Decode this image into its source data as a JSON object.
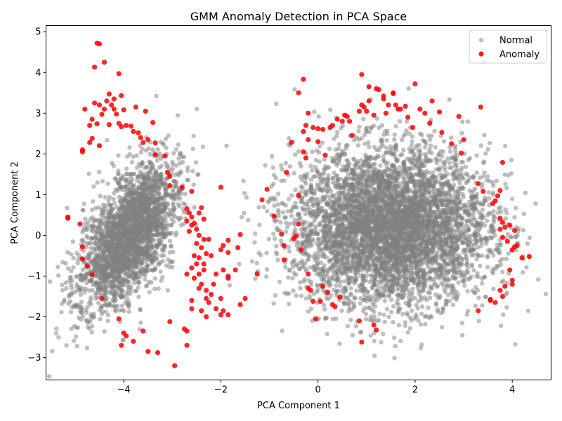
{
  "chart_data": {
    "type": "scatter",
    "title": "GMM Anomaly Detection in PCA Space",
    "xlabel": "PCA Component 1",
    "ylabel": "PCA Component 2",
    "xlim": [
      -5.6,
      4.8
    ],
    "ylim": [
      -3.55,
      5.15
    ],
    "xticks": [
      -4,
      -2,
      0,
      2,
      4
    ],
    "yticks": [
      -3,
      -2,
      -1,
      0,
      1,
      2,
      3,
      4,
      5
    ],
    "grid": false,
    "legend_position": "top-right",
    "series": [
      {
        "name": "Normal",
        "color": "#808080",
        "opacity": 0.5,
        "clusters": [
          {
            "center": [
              -3.9,
              0.0
            ],
            "spread": [
              0.38,
              0.95
            ],
            "rotation_deg": -22,
            "n": 2600
          },
          {
            "center": [
              1.5,
              0.2
            ],
            "spread": [
              1.0,
              0.95
            ],
            "rotation_deg": 0,
            "n": 5200
          }
        ]
      },
      {
        "name": "Anomaly",
        "color": "#ff0000",
        "opacity": 0.85,
        "points": [
          [
            -4.55,
            4.72
          ],
          [
            -4.5,
            4.7
          ],
          [
            -4.6,
            4.13
          ],
          [
            -4.4,
            4.25
          ],
          [
            -4.1,
            3.97
          ],
          [
            -4.3,
            3.47
          ],
          [
            -4.2,
            3.35
          ],
          [
            -4.05,
            3.43
          ],
          [
            -4.35,
            3.3
          ],
          [
            -4.25,
            3.2
          ],
          [
            -4.4,
            3.1
          ],
          [
            -4.5,
            3.2
          ],
          [
            -4.8,
            3.1
          ],
          [
            -4.6,
            3.25
          ],
          [
            -4.2,
            3.1
          ],
          [
            -4.15,
            2.98
          ],
          [
            -4.45,
            2.97
          ],
          [
            -4.65,
            2.85
          ],
          [
            -4.7,
            2.7
          ],
          [
            -4.55,
            2.74
          ],
          [
            -4.3,
            2.72
          ],
          [
            -4.05,
            2.67
          ],
          [
            -3.95,
            2.7
          ],
          [
            -4.0,
            3.08
          ],
          [
            -4.1,
            2.75
          ],
          [
            -3.85,
            2.68
          ],
          [
            -3.75,
            3.15
          ],
          [
            -3.55,
            3.05
          ],
          [
            -3.8,
            2.55
          ],
          [
            -3.7,
            2.52
          ],
          [
            -3.65,
            2.4
          ],
          [
            -3.5,
            2.35
          ],
          [
            -3.6,
            2.28
          ],
          [
            -3.4,
            2.77
          ],
          [
            -3.35,
            2.27
          ],
          [
            -3.35,
            1.98
          ],
          [
            -3.15,
            1.95
          ],
          [
            -3.1,
            1.55
          ],
          [
            -3.05,
            1.45
          ],
          [
            -3.05,
            1.22
          ],
          [
            -2.8,
            1.18
          ],
          [
            -4.65,
            2.38
          ],
          [
            -4.7,
            2.28
          ],
          [
            -4.85,
            2.1
          ],
          [
            -4.85,
            2.05
          ],
          [
            -4.5,
            2.2
          ],
          [
            -2.6,
            1.08
          ],
          [
            -2.0,
            1.18
          ],
          [
            -5.15,
            0.45
          ],
          [
            -5.15,
            0.42
          ],
          [
            -4.9,
            0.28
          ],
          [
            -4.85,
            -0.28
          ],
          [
            -4.85,
            -0.58
          ],
          [
            -4.75,
            -0.75
          ],
          [
            -4.65,
            -0.97
          ],
          [
            -4.45,
            -1.55
          ],
          [
            -4.1,
            -2.05
          ],
          [
            -4.0,
            -2.4
          ],
          [
            -3.95,
            -2.47
          ],
          [
            -4.05,
            -2.7
          ],
          [
            -3.8,
            -2.6
          ],
          [
            -3.6,
            -2.35
          ],
          [
            -3.5,
            -2.85
          ],
          [
            -3.3,
            -2.88
          ],
          [
            -3.05,
            -2.12
          ],
          [
            -2.95,
            -3.2
          ],
          [
            -2.7,
            -2.35
          ],
          [
            -2.7,
            -2.7
          ],
          [
            -2.75,
            -2.3
          ],
          [
            -2.7,
            0.65
          ],
          [
            -2.65,
            0.55
          ],
          [
            -2.6,
            0.45
          ],
          [
            -2.7,
            0.35
          ],
          [
            -2.6,
            0.25
          ],
          [
            -2.65,
            0.1
          ],
          [
            -2.55,
            0.3
          ],
          [
            -2.45,
            0.55
          ],
          [
            -2.4,
            0.68
          ],
          [
            -2.35,
            0.4
          ],
          [
            -2.5,
            0.15
          ],
          [
            -2.45,
            0.0
          ],
          [
            -2.35,
            -0.1
          ],
          [
            -2.25,
            -0.1
          ],
          [
            -2.5,
            -0.2
          ],
          [
            -2.4,
            -0.3
          ],
          [
            -2.55,
            -0.5
          ],
          [
            -2.45,
            -0.55
          ],
          [
            -2.3,
            -0.45
          ],
          [
            -2.2,
            -0.5
          ],
          [
            -2.5,
            -0.7
          ],
          [
            -2.35,
            -0.85
          ],
          [
            -2.45,
            -0.95
          ],
          [
            -2.55,
            -1.05
          ],
          [
            -2.4,
            -1.2
          ],
          [
            -2.3,
            -1.35
          ],
          [
            -2.45,
            -1.3
          ],
          [
            -2.3,
            -1.55
          ],
          [
            -2.2,
            -1.45
          ],
          [
            -2.25,
            -1.65
          ],
          [
            -2.1,
            -1.8
          ],
          [
            -2.0,
            -1.55
          ],
          [
            -2.0,
            -1.95
          ],
          [
            -1.95,
            -1.85
          ],
          [
            -1.85,
            -1.95
          ],
          [
            -1.95,
            -0.25
          ],
          [
            -2.0,
            -0.35
          ],
          [
            -1.85,
            -0.12
          ],
          [
            -1.85,
            -0.42
          ],
          [
            -1.95,
            -0.85
          ],
          [
            -1.85,
            -1.0
          ],
          [
            -1.85,
            -1.05
          ],
          [
            -1.7,
            -0.85
          ],
          [
            -1.65,
            -0.3
          ],
          [
            -1.6,
            0.02
          ],
          [
            -1.6,
            -1.7
          ],
          [
            -1.5,
            -1.55
          ],
          [
            -1.25,
            -0.95
          ],
          [
            -2.1,
            -0.95
          ],
          [
            -2.15,
            -1.2
          ],
          [
            -2.35,
            -0.7
          ],
          [
            -2.6,
            -1.8
          ],
          [
            -2.4,
            -1.85
          ],
          [
            -2.6,
            -1.6
          ],
          [
            -2.3,
            -2.0
          ],
          [
            -2.6,
            -0.8
          ],
          [
            -2.7,
            -0.95
          ],
          [
            -1.15,
            0.87
          ],
          [
            -1.05,
            1.13
          ],
          [
            -0.9,
            0.47
          ],
          [
            -0.75,
            0.03
          ],
          [
            -0.7,
            -0.25
          ],
          [
            -0.7,
            -0.6
          ],
          [
            -0.65,
            1.55
          ],
          [
            -0.55,
            2.28
          ],
          [
            -0.5,
            -0.08
          ],
          [
            -0.45,
            -0.02
          ],
          [
            -0.4,
            0.28
          ],
          [
            -0.4,
            0.98
          ],
          [
            -0.35,
            -0.35
          ],
          [
            -0.4,
            3.5
          ],
          [
            -0.3,
            3.83
          ],
          [
            -0.3,
            2.55
          ],
          [
            -0.25,
            2.7
          ],
          [
            -0.25,
            1.9
          ],
          [
            -0.2,
            2.35
          ],
          [
            -0.3,
            2.05
          ],
          [
            -0.2,
            3.0
          ],
          [
            -0.2,
            -0.95
          ],
          [
            -0.15,
            -1.35
          ],
          [
            -0.2,
            -1.3
          ],
          [
            -0.1,
            -1.62
          ],
          [
            -0.05,
            -2.05
          ],
          [
            0.0,
            2.3
          ],
          [
            0.0,
            2.62
          ],
          [
            -0.1,
            2.65
          ],
          [
            0.05,
            -1.62
          ],
          [
            0.1,
            -1.25
          ],
          [
            0.2,
            -1.4
          ],
          [
            0.1,
            2.6
          ],
          [
            0.15,
            1.97
          ],
          [
            0.25,
            2.65
          ],
          [
            0.3,
            -1.7
          ],
          [
            0.35,
            -1.75
          ],
          [
            0.3,
            2.7
          ],
          [
            0.4,
            2.85
          ],
          [
            0.5,
            2.8
          ],
          [
            0.55,
            2.95
          ],
          [
            0.6,
            2.92
          ],
          [
            0.65,
            2.8
          ],
          [
            0.7,
            2.45
          ],
          [
            0.85,
            3.05
          ],
          [
            0.9,
            3.2
          ],
          [
            0.9,
            3.95
          ],
          [
            0.95,
            3.15
          ],
          [
            1.0,
            3.05
          ],
          [
            1.05,
            3.3
          ],
          [
            1.05,
            3.65
          ],
          [
            1.15,
            2.95
          ],
          [
            1.2,
            3.6
          ],
          [
            1.25,
            3.58
          ],
          [
            1.35,
            3.42
          ],
          [
            1.35,
            3.35
          ],
          [
            1.4,
            3.0
          ],
          [
            1.45,
            3.2
          ],
          [
            1.55,
            3.48
          ],
          [
            1.55,
            3.5
          ],
          [
            1.6,
            3.2
          ],
          [
            1.65,
            3.1
          ],
          [
            1.7,
            3.1
          ],
          [
            1.8,
            3.17
          ],
          [
            1.85,
            2.9
          ],
          [
            1.95,
            2.65
          ],
          [
            2.0,
            3.72
          ],
          [
            2.1,
            3.1
          ],
          [
            2.2,
            3.0
          ],
          [
            2.3,
            2.75
          ],
          [
            2.35,
            3.3
          ],
          [
            2.5,
            3.03
          ],
          [
            2.55,
            2.53
          ],
          [
            2.75,
            2.25
          ],
          [
            2.9,
            2.92
          ],
          [
            2.95,
            2.02
          ],
          [
            3.0,
            2.35
          ],
          [
            3.35,
            3.15
          ],
          [
            3.3,
            1.27
          ],
          [
            3.4,
            1.08
          ],
          [
            3.6,
            0.78
          ],
          [
            3.65,
            0.85
          ],
          [
            3.7,
            0.97
          ],
          [
            3.75,
            1.1
          ],
          [
            3.8,
            1.79
          ],
          [
            3.75,
            0.42
          ],
          [
            3.8,
            0.32
          ],
          [
            3.85,
            0.2
          ],
          [
            3.8,
            -0.05
          ],
          [
            3.75,
            0.15
          ],
          [
            3.95,
            0.25
          ],
          [
            4.05,
            0.12
          ],
          [
            4.0,
            -0.35
          ],
          [
            4.05,
            -0.28
          ],
          [
            4.1,
            -0.25
          ],
          [
            3.9,
            -0.15
          ],
          [
            3.95,
            -0.85
          ],
          [
            3.85,
            -1.25
          ],
          [
            3.75,
            -1.35
          ],
          [
            3.8,
            -1.5
          ],
          [
            3.65,
            -1.65
          ],
          [
            3.55,
            -1.57
          ],
          [
            3.55,
            -1.6
          ],
          [
            3.3,
            -1.85
          ],
          [
            4.0,
            -1.1
          ],
          [
            4.0,
            -1.2
          ],
          [
            4.2,
            -0.55
          ],
          [
            4.35,
            -0.52
          ],
          [
            0.85,
            -2.1
          ],
          [
            0.9,
            -2.62
          ],
          [
            1.15,
            -2.2
          ],
          [
            1.2,
            -2.32
          ],
          [
            0.45,
            -1.52
          ]
        ]
      }
    ]
  }
}
